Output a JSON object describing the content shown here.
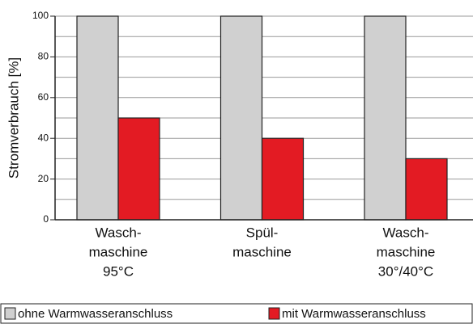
{
  "chart_data": {
    "type": "bar",
    "ylabel": "Stromverbrauch [%]",
    "categories": [
      [
        "Wasch-",
        "maschine",
        "95°C"
      ],
      [
        "Spül-",
        "maschine"
      ],
      [
        "Wasch-",
        "maschine",
        "30°/40°C"
      ]
    ],
    "series": [
      {
        "name": "ohne Warmwasseranschluss",
        "color": "#d0d0d0",
        "values": [
          100,
          100,
          100
        ]
      },
      {
        "name": "mit Warmwasseranschluss",
        "color": "#e31b23",
        "values": [
          50,
          40,
          30
        ]
      }
    ],
    "ylim": [
      0,
      100
    ],
    "yticks": [
      0,
      20,
      40,
      60,
      80,
      100
    ],
    "minor_yticks": [
      10,
      30,
      50,
      70,
      90
    ],
    "grid": true
  }
}
